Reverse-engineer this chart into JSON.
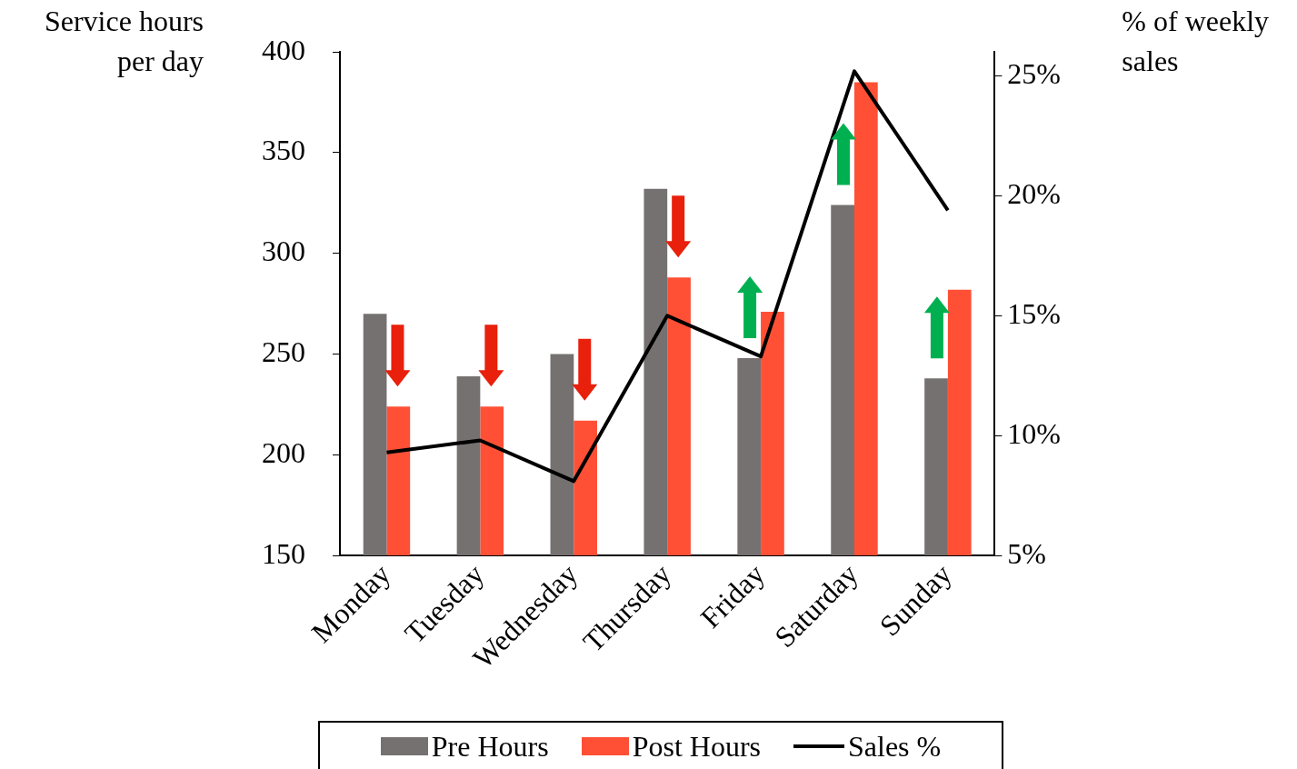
{
  "chart_data": {
    "type": "bar",
    "ylabel": "Service hours per day",
    "y2label": "% of weekly sales",
    "categories": [
      "Monday",
      "Tuesday",
      "Wednesday",
      "Thursday",
      "Friday",
      "Saturday",
      "Sunday"
    ],
    "series": [
      {
        "name": "Pre Hours",
        "color": "#767171",
        "values": [
          270,
          239,
          250,
          332,
          248,
          324,
          238
        ]
      },
      {
        "name": "Post Hours",
        "color": "#ff5036",
        "values": [
          224,
          224,
          217,
          288,
          271,
          385,
          282
        ]
      },
      {
        "name": "Sales %",
        "type": "line",
        "axis": "y2",
        "color": "#000000",
        "values": [
          9.3,
          9.8,
          8.1,
          15.0,
          13.3,
          25.2,
          19.4
        ]
      }
    ],
    "ylim": [
      150,
      400
    ],
    "yticks": [
      150,
      200,
      250,
      300,
      350,
      400
    ],
    "y2lim": [
      5,
      26
    ],
    "y2ticks": [
      {
        "value": 5,
        "label": "5%"
      },
      {
        "value": 10,
        "label": "10%"
      },
      {
        "value": 15,
        "label": "15%"
      },
      {
        "value": 20,
        "label": "20%"
      },
      {
        "value": 25,
        "label": "25%"
      }
    ],
    "grid": false,
    "legend": "bottom"
  }
}
